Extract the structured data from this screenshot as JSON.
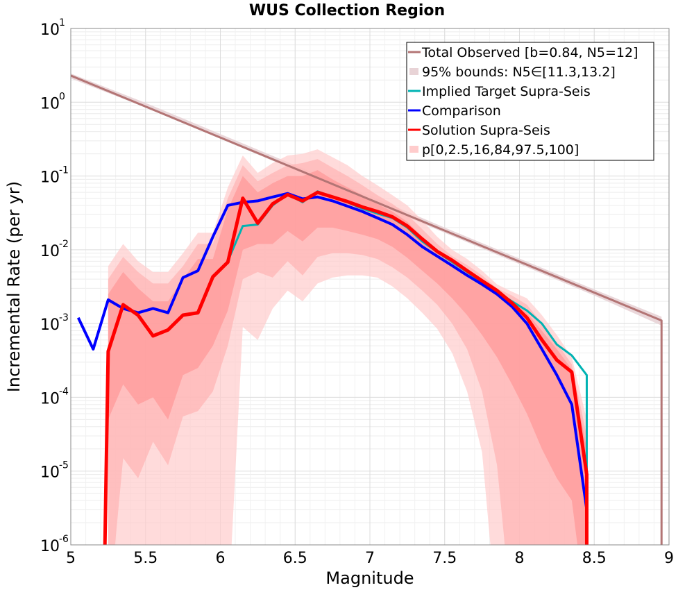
{
  "chart_data": {
    "type": "line",
    "title": "WUS Collection Region",
    "xlabel": "Magnitude",
    "ylabel": "Incremental Rate (per yr)",
    "xlim": [
      5,
      9
    ],
    "ylim": [
      1e-06,
      10
    ],
    "yscale": "log",
    "grid": true,
    "legend_position": "top-right",
    "x_ticks": [
      "5",
      "5.5",
      "6",
      "6.5",
      "7",
      "7.5",
      "8",
      "8.5",
      "9"
    ],
    "y_ticks": [
      {
        "base": "10",
        "exp": "-6",
        "value": 1e-06
      },
      {
        "base": "10",
        "exp": "-5",
        "value": 1e-05
      },
      {
        "base": "10",
        "exp": "-4",
        "value": 0.0001
      },
      {
        "base": "10",
        "exp": "-3",
        "value": 0.001
      },
      {
        "base": "10",
        "exp": "-2",
        "value": 0.01
      },
      {
        "base": "10",
        "exp": "-1",
        "value": 0.1
      },
      {
        "base": "10",
        "exp": "0",
        "value": 1
      },
      {
        "base": "10",
        "exp": "1",
        "value": 10
      }
    ],
    "legend": [
      {
        "label": "Total Observed [b=0.84, N5=12]",
        "color": "#b37575",
        "style": "line"
      },
      {
        "label": "95% bounds: N5∈[11.3,13.2]",
        "color": "#e8d3d6",
        "style": "band"
      },
      {
        "label": "Implied Target Supra-Seis",
        "color": "#00b3b3",
        "style": "line"
      },
      {
        "label": "Comparison",
        "color": "#0000ff",
        "style": "line"
      },
      {
        "label": "Solution Supra-Seis",
        "color": "#ff0000",
        "style": "line"
      },
      {
        "label": "p[0,2.5,16,84,97.5,100]",
        "color": "#ffcccc",
        "style": "band"
      }
    ],
    "bands": [
      {
        "name": "95% bounds: N5∈[11.3,13.2]",
        "color": "#e8d3d6",
        "opacity": 0.9,
        "x": [
          5.0,
          5.5,
          6.0,
          6.5,
          7.0,
          7.5,
          8.0,
          8.5,
          8.95
        ],
        "lower": [
          2.1,
          0.85,
          0.32,
          0.12,
          0.046,
          0.017,
          0.0064,
          0.0024,
          0.00094
        ],
        "upper": [
          2.45,
          0.98,
          0.37,
          0.14,
          0.054,
          0.02,
          0.0076,
          0.0029,
          0.00124
        ]
      },
      {
        "name": "p0-p100",
        "color": "#ffcccc",
        "opacity": 0.7,
        "x": [
          5.25,
          5.35,
          5.45,
          5.55,
          5.65,
          5.75,
          5.85,
          5.95,
          6.05,
          6.15,
          6.25,
          6.35,
          6.45,
          6.55,
          6.65,
          6.75,
          6.85,
          6.95,
          7.05,
          7.15,
          7.25,
          7.35,
          7.45,
          7.55,
          7.65,
          7.75,
          7.85,
          7.95,
          8.05,
          8.15,
          8.25,
          8.35,
          8.45
        ],
        "lower": [
          1e-07,
          1e-07,
          1e-07,
          1e-07,
          1e-07,
          1e-07,
          1e-07,
          1e-07,
          1e-07,
          0.0009,
          0.0006,
          0.0016,
          0.0028,
          0.002,
          0.0035,
          0.0042,
          0.0045,
          0.0045,
          0.0042,
          0.0032,
          0.0022,
          0.0014,
          0.00085,
          0.0004,
          0.00012,
          1.8e-05,
          1e-07,
          1e-07,
          1e-07,
          1e-07,
          1e-07,
          1e-07,
          1e-07
        ],
        "upper": [
          0.006,
          0.012,
          0.007,
          0.005,
          0.005,
          0.009,
          0.017,
          0.017,
          0.07,
          0.19,
          0.11,
          0.15,
          0.19,
          0.2,
          0.23,
          0.18,
          0.14,
          0.1,
          0.075,
          0.055,
          0.04,
          0.025,
          0.015,
          0.01,
          0.0075,
          0.0052,
          0.0034,
          0.0027,
          0.0022,
          0.0013,
          0.0007,
          0.00035,
          5e-05
        ]
      },
      {
        "name": "p2.5-p97.5",
        "color": "#ffb3b3",
        "opacity": 0.7,
        "x": [
          5.25,
          5.35,
          5.45,
          5.55,
          5.65,
          5.75,
          5.85,
          5.95,
          6.05,
          6.15,
          6.25,
          6.35,
          6.45,
          6.55,
          6.65,
          6.75,
          6.85,
          6.95,
          7.05,
          7.15,
          7.25,
          7.35,
          7.45,
          7.55,
          7.65,
          7.75,
          7.85,
          7.95,
          8.05,
          8.15,
          8.25,
          8.35,
          8.45
        ],
        "lower": [
          1e-07,
          1.5e-05,
          8e-06,
          2.5e-05,
          1.2e-05,
          5.5e-05,
          6.5e-05,
          0.00012,
          0.0005,
          0.004,
          0.005,
          0.0042,
          0.007,
          0.0045,
          0.008,
          0.009,
          0.009,
          0.0085,
          0.0075,
          0.0058,
          0.0042,
          0.0028,
          0.0018,
          0.001,
          0.00045,
          0.00012,
          1.2e-05,
          1e-07,
          1e-07,
          1e-07,
          1e-07,
          1e-07,
          1e-07
        ],
        "upper": [
          0.004,
          0.008,
          0.005,
          0.0035,
          0.0035,
          0.006,
          0.012,
          0.012,
          0.05,
          0.14,
          0.085,
          0.11,
          0.14,
          0.15,
          0.17,
          0.13,
          0.1,
          0.075,
          0.055,
          0.042,
          0.03,
          0.019,
          0.012,
          0.0082,
          0.0062,
          0.0045,
          0.003,
          0.0024,
          0.0018,
          0.001,
          0.00055,
          0.00028,
          3e-05
        ]
      },
      {
        "name": "p16-p84",
        "color": "#ff9999",
        "opacity": 0.75,
        "x": [
          5.25,
          5.35,
          5.45,
          5.55,
          5.65,
          5.75,
          5.85,
          5.95,
          6.05,
          6.15,
          6.25,
          6.35,
          6.45,
          6.55,
          6.65,
          6.75,
          6.85,
          6.95,
          7.05,
          7.15,
          7.25,
          7.35,
          7.45,
          7.55,
          7.65,
          7.75,
          7.85,
          7.95,
          8.05,
          8.15,
          8.25,
          8.35,
          8.45
        ],
        "lower": [
          5e-05,
          0.00015,
          8e-05,
          0.0001,
          5e-05,
          0.0002,
          0.00025,
          0.0005,
          0.0015,
          0.01,
          0.012,
          0.012,
          0.018,
          0.013,
          0.02,
          0.02,
          0.018,
          0.016,
          0.014,
          0.011,
          0.0078,
          0.0052,
          0.0035,
          0.0022,
          0.0013,
          0.0007,
          0.00035,
          0.00015,
          6e-05,
          2e-05,
          8e-06,
          4e-06,
          1e-07
        ],
        "upper": [
          0.0025,
          0.005,
          0.003,
          0.002,
          0.002,
          0.004,
          0.0075,
          0.0075,
          0.035,
          0.1,
          0.06,
          0.08,
          0.1,
          0.1,
          0.12,
          0.09,
          0.07,
          0.055,
          0.042,
          0.033,
          0.024,
          0.015,
          0.0095,
          0.0068,
          0.0052,
          0.0038,
          0.0026,
          0.002,
          0.0014,
          0.0008,
          0.00045,
          0.00024,
          2e-05
        ]
      }
    ],
    "series": [
      {
        "name": "Total Observed [b=0.84, N5=12]",
        "color": "#b37575",
        "width": 3,
        "x": [
          5.0,
          8.95,
          8.95
        ],
        "y": [
          2.3,
          0.0011,
          1e-07
        ]
      },
      {
        "name": "Implied Target Supra-Seis",
        "color": "#00b3b3",
        "width": 3,
        "x": [
          6.05,
          6.15,
          6.25,
          6.35,
          6.45,
          6.55,
          6.65,
          6.75,
          6.85,
          6.95,
          7.05,
          7.15,
          7.25,
          7.35,
          7.45,
          7.55,
          7.65,
          7.75,
          7.85,
          7.95,
          8.05,
          8.15,
          8.25,
          8.35,
          8.45,
          8.45
        ],
        "y": [
          0.007,
          0.021,
          0.022,
          0.04,
          0.057,
          0.044,
          0.062,
          0.052,
          0.044,
          0.036,
          0.031,
          0.027,
          0.02,
          0.013,
          0.0093,
          0.0068,
          0.005,
          0.0036,
          0.0027,
          0.002,
          0.0015,
          0.001,
          0.00052,
          0.00037,
          0.0002,
          1e-07
        ]
      },
      {
        "name": "Comparison",
        "color": "#0000ff",
        "width": 4,
        "x": [
          5.05,
          5.15,
          5.25,
          5.35,
          5.45,
          5.55,
          5.65,
          5.75,
          5.85,
          5.95,
          6.05,
          6.15,
          6.25,
          6.35,
          6.45,
          6.55,
          6.65,
          6.75,
          6.85,
          6.95,
          7.05,
          7.15,
          7.25,
          7.35,
          7.45,
          7.55,
          7.65,
          7.75,
          7.85,
          7.95,
          8.05,
          8.15,
          8.25,
          8.35,
          8.45,
          8.45
        ],
        "y": [
          0.0012,
          0.00045,
          0.0021,
          0.0016,
          0.0014,
          0.0016,
          0.0014,
          0.0042,
          0.0052,
          0.015,
          0.04,
          0.044,
          0.046,
          0.052,
          0.058,
          0.049,
          0.052,
          0.046,
          0.039,
          0.033,
          0.027,
          0.022,
          0.016,
          0.011,
          0.0082,
          0.0061,
          0.0045,
          0.0034,
          0.0025,
          0.0017,
          0.001,
          0.00045,
          0.0002,
          8e-05,
          3e-06,
          1e-07
        ]
      },
      {
        "name": "Solution Supra-Seis",
        "color": "#ff0000",
        "width": 5,
        "x": [
          5.22,
          5.25,
          5.35,
          5.45,
          5.55,
          5.65,
          5.75,
          5.85,
          5.95,
          6.05,
          6.15,
          6.25,
          6.35,
          6.45,
          6.55,
          6.65,
          6.75,
          6.85,
          6.95,
          7.05,
          7.15,
          7.25,
          7.35,
          7.45,
          7.55,
          7.65,
          7.75,
          7.85,
          7.95,
          8.05,
          8.15,
          8.25,
          8.35,
          8.45,
          8.45
        ],
        "y": [
          1e-07,
          0.00042,
          0.0018,
          0.0013,
          0.00068,
          0.00082,
          0.0013,
          0.0014,
          0.0043,
          0.0068,
          0.05,
          0.023,
          0.042,
          0.056,
          0.046,
          0.06,
          0.052,
          0.045,
          0.038,
          0.033,
          0.028,
          0.021,
          0.014,
          0.0095,
          0.0072,
          0.0052,
          0.0038,
          0.0028,
          0.0019,
          0.0012,
          0.0006,
          0.00032,
          0.00022,
          9e-06,
          1e-07
        ]
      }
    ]
  }
}
